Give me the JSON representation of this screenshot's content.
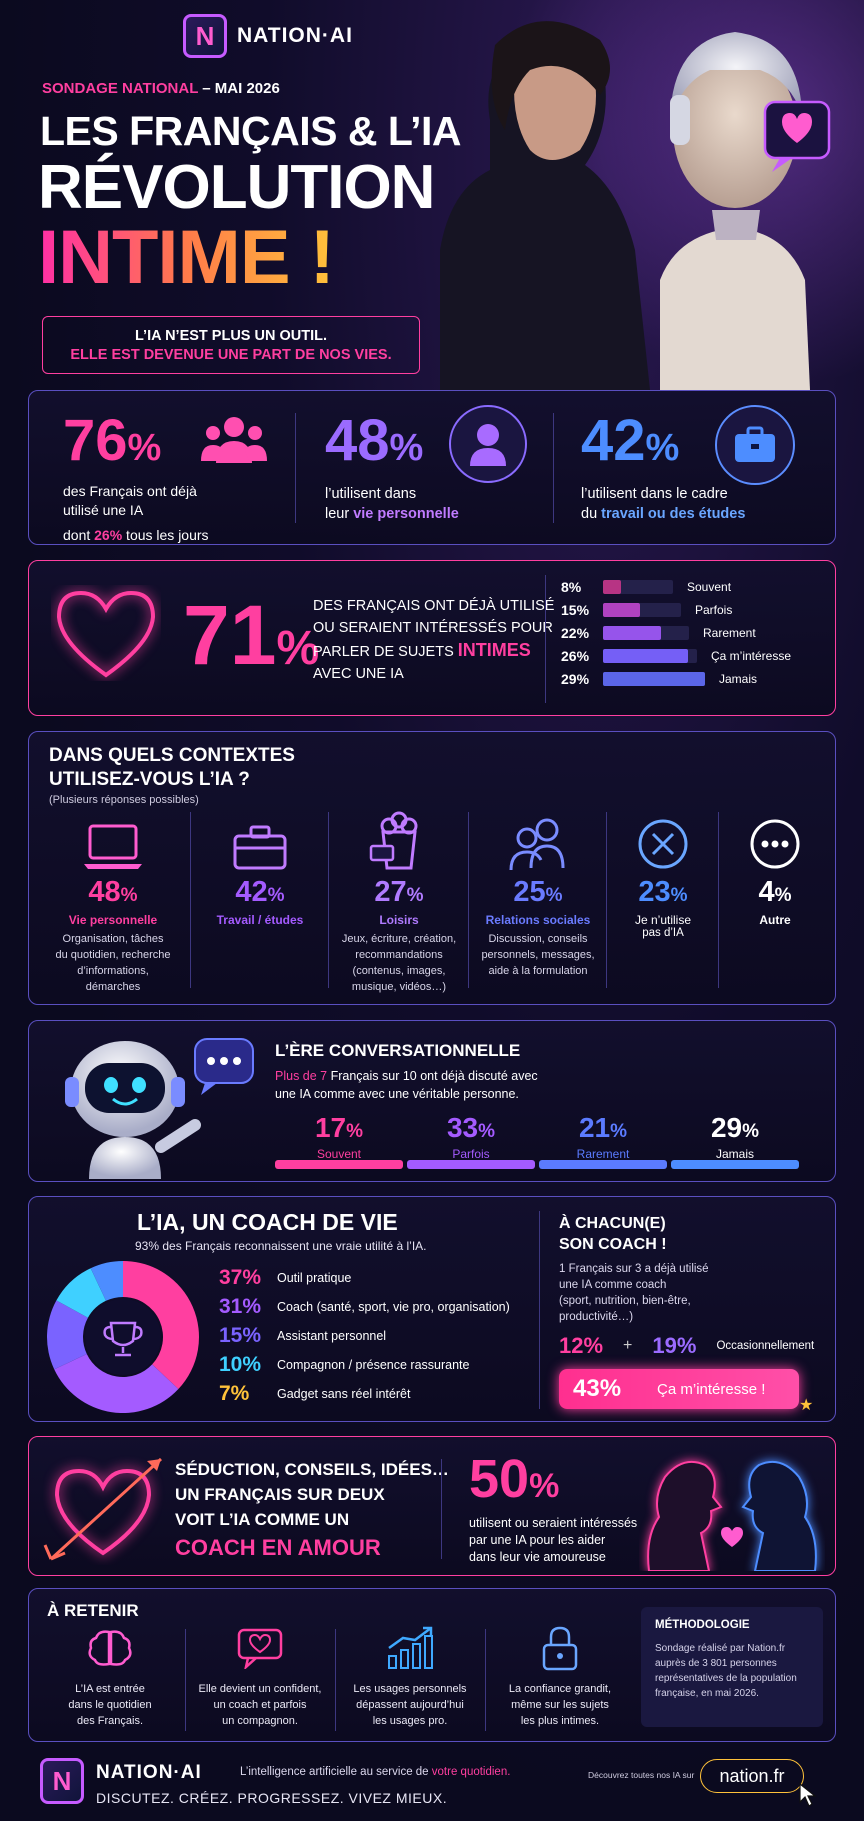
{
  "brand": {
    "name": "NATION·AI",
    "logo_letter": "N",
    "url": "nation.fr"
  },
  "header": {
    "kicker_a": "SONDAGE NATIONAL",
    "kicker_b": "– MAI 2026",
    "title1": "LES FRANÇAIS & L’IA",
    "title2": "RÉVOLUTION",
    "title3": "INTIME !",
    "tagline1": "L’IA N’EST PLUS UN OUTIL.",
    "tagline2": "ELLE EST DEVENUE UNE PART DE NOS VIES."
  },
  "stats": [
    {
      "pct": "76",
      "unit": "%",
      "line1": "des Français ont déjà",
      "line2": "utilisé une IA",
      "line3a": "dont ",
      "line3b": "26%",
      "line3c": " tous les jours"
    },
    {
      "pct": "48",
      "unit": "%",
      "line1": "l’utilisent dans",
      "line2a": "leur ",
      "line2b": "vie personnelle"
    },
    {
      "pct": "42",
      "unit": "%",
      "line1": "l’utilisent dans le cadre",
      "line2a": "du ",
      "line2b": "travail ou des études"
    }
  ],
  "intimate": {
    "pct": "71",
    "unit": "%",
    "l1": "DES FRANÇAIS ONT DÉJÀ UTILISÉ",
    "l2": "OU SERAIENT INTÉRESSÉS POUR",
    "l3a": "PARLER DE SUJETS ",
    "l3b": "INTIMES",
    "l4": "AVEC UNE IA",
    "bars": [
      {
        "label": "8%",
        "value": 8,
        "name": "Souvent",
        "color": "#ff3fa0"
      },
      {
        "label": "15%",
        "value": 15,
        "name": "Parfois",
        "color": "#d84be0"
      },
      {
        "label": "22%",
        "value": 22,
        "name": "Rarement",
        "color": "#a45bff"
      },
      {
        "label": "26%",
        "value": 26,
        "name": "Ça m’intéresse",
        "color": "#7a63ff"
      },
      {
        "label": "29%",
        "value": 29,
        "name": "Jamais",
        "color": "#5b66e8"
      }
    ]
  },
  "contexts": {
    "title1": "DANS QUELS CONTEXTES",
    "title2": "UTILISEZ-VOUS L’IA ?",
    "note": "(Plusieurs réponses possibles)",
    "items": [
      {
        "pct": "48",
        "unit": "%",
        "label": "Vie personnelle",
        "desc": [
          "Organisation, tâches",
          "du quotidien, recherche",
          "d’informations,",
          "démarches"
        ],
        "color": "#ff3fa0",
        "icon": "laptop-icon"
      },
      {
        "pct": "42",
        "unit": "%",
        "label": "Travail / études",
        "desc": [],
        "color": "#a45bff",
        "icon": "briefcase-icon"
      },
      {
        "pct": "27",
        "unit": "%",
        "label": "Loisirs",
        "desc": [
          "Jeux, écriture, création,",
          "recommandations",
          "(contenus, images,",
          "musique, vidéos…)"
        ],
        "color": "#b07bff",
        "icon": "popcorn-icon"
      },
      {
        "pct": "25",
        "unit": "%",
        "label": "Relations sociales",
        "desc": [
          "Discussion, conseils",
          "personnels, messages,",
          "aide à la formulation"
        ],
        "color": "#6a7bff",
        "icon": "people-icon"
      },
      {
        "pct": "23",
        "unit": "%",
        "label": "Je n’utilise",
        "label2": "pas d’IA",
        "desc": [],
        "color": "#4d8dff",
        "icon": "x-circle-icon"
      },
      {
        "pct": "4",
        "unit": "%",
        "label": "Autre",
        "desc": [],
        "color": "#ffffff",
        "icon": "more-icon"
      }
    ]
  },
  "conversational": {
    "title": "L’ÈRE CONVERSATIONNELLE",
    "l1a": "Plus de 7",
    "l1b": " Français sur 10 ont déjà discuté avec",
    "l2a": "une IA comme avec une véritable personne.",
    "segments": [
      {
        "pct": "17",
        "unit": "%",
        "label": "Souvent",
        "color": "#ff3fa0",
        "value": 17
      },
      {
        "pct": "33",
        "unit": "%",
        "label": "Parfois",
        "color": "#a45bff",
        "value": 33
      },
      {
        "pct": "21",
        "unit": "%",
        "label": "Rarement",
        "color": "#5b7bff",
        "value": 21
      },
      {
        "pct": "29",
        "unit": "%",
        "label": "Jamais",
        "color": "#4d8dff",
        "value": 29
      }
    ]
  },
  "coach": {
    "title": "L’IA, UN COACH DE VIE",
    "subtitle": "93% des Français reconnaissent une vraie utilité à l’IA.",
    "legend": [
      {
        "pct": "37%",
        "value": 37,
        "label": "Outil pratique",
        "color": "#ff3fa0"
      },
      {
        "pct": "31%",
        "value": 31,
        "label": "Coach (santé, sport, vie pro, organisation)",
        "color": "#a45bff"
      },
      {
        "pct": "15%",
        "value": 15,
        "label": "Assistant personnel",
        "color": "#7a63ff"
      },
      {
        "pct": "10%",
        "value": 10,
        "label": "Compagnon / présence rassurante",
        "color": "#3fd0ff"
      },
      {
        "pct": "7%",
        "value": 7,
        "label": "Gadget sans réel intérêt",
        "color": "#4d8dff"
      }
    ],
    "right_title1": "À CHACUN(E)",
    "right_title2": "SON COACH !",
    "right_l1": "1 Français sur 3 a déjà utilisé",
    "right_l2": "une IA comme coach",
    "right_l3": "(sport, nutrition, bien-être,",
    "right_l4": "productivité…)",
    "pct_a": "12%",
    "plus": "+",
    "pct_b": "19%",
    "occasional": "Occasionnellement",
    "pill_pct": "43%",
    "pill_label": "Ça m’intéresse !"
  },
  "love": {
    "l1": "SÉDUCTION, CONSEILS, IDÉES…",
    "l2": "UN FRANÇAIS SUR DEUX",
    "l3": "VOIT L’IA COMME UN",
    "l4": "COACH EN AMOUR",
    "pct": "50",
    "unit": "%",
    "d1": "utilisent ou seraient intéressés",
    "d2": "par une IA pour les aider",
    "d3": "dans leur vie amoureuse"
  },
  "retain": {
    "title": "À RETENIR",
    "items": [
      {
        "lines": [
          "L’IA est entrée",
          "dans le quotidien",
          "des Français."
        ],
        "icon": "brain-icon"
      },
      {
        "lines": [
          "Elle devient un confident,",
          "un coach et parfois",
          "un compagnon."
        ],
        "icon": "chat-heart-icon"
      },
      {
        "lines": [
          "Les usages personnels",
          "dépassent aujourd’hui",
          "les usages pro."
        ],
        "icon": "chart-up-icon"
      },
      {
        "lines": [
          "La confiance grandit,",
          "même sur les sujets",
          "les plus intimes."
        ],
        "icon": "lock-icon"
      }
    ],
    "method_title": "MÉTHODOLOGIE",
    "method_lines": [
      "Sondage réalisé par Nation.fr",
      "auprès de 3 801 personnes",
      "représentatives de la population",
      "française, en mai 2026."
    ]
  },
  "footer": {
    "tagline_a": "L’intelligence artificielle au service de ",
    "tagline_b": "votre quotidien.",
    "slogan": "DISCUTEZ. CRÉEZ. PROGRESSEZ. VIVEZ MIEUX.",
    "cta": "Découvrez toutes nos IA sur"
  },
  "colors": {
    "pink": "#ff3fa0",
    "purple": "#a45bff",
    "blue": "#4d8dff",
    "cyan": "#3fd0ff",
    "yellow": "#ffc23a",
    "border": "#5a4fc0"
  }
}
